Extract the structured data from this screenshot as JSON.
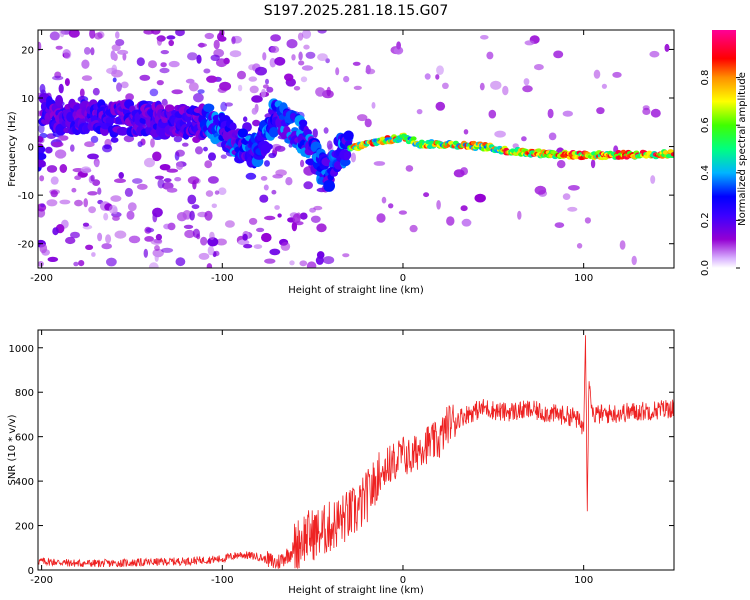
{
  "title": "S197.2025.281.18.15.G07",
  "chart_data": [
    {
      "type": "heatmap",
      "xlabel": "Height of straight line (km)",
      "ylabel": "Frequency (Hz)",
      "xlim": [
        -202,
        150
      ],
      "ylim": [
        -25,
        24
      ],
      "xticks": [
        -200,
        -100,
        0,
        100
      ],
      "yticks": [
        -20,
        -10,
        0,
        10,
        20
      ],
      "ridge": [
        {
          "x": -200,
          "y": 7
        },
        {
          "x": -180,
          "y": 6
        },
        {
          "x": -150,
          "y": 6
        },
        {
          "x": -120,
          "y": 5
        },
        {
          "x": -105,
          "y": 5
        },
        {
          "x": -90,
          "y": 0
        },
        {
          "x": -80,
          "y": -1
        },
        {
          "x": -70,
          "y": 7
        },
        {
          "x": -62,
          "y": 4
        },
        {
          "x": -55,
          "y": 2
        },
        {
          "x": -48,
          "y": -3
        },
        {
          "x": -42,
          "y": -6
        },
        {
          "x": -35,
          "y": -1
        },
        {
          "x": -25,
          "y": 0
        },
        {
          "x": -15,
          "y": 1
        },
        {
          "x": -5,
          "y": 1.5
        },
        {
          "x": 0,
          "y": 2
        },
        {
          "x": 10,
          "y": 0.5
        },
        {
          "x": 25,
          "y": 0.5
        },
        {
          "x": 45,
          "y": 0
        },
        {
          "x": 60,
          "y": -1
        },
        {
          "x": 80,
          "y": -1.5
        },
        {
          "x": 100,
          "y": -1.8
        },
        {
          "x": 125,
          "y": -1.7
        },
        {
          "x": 150,
          "y": -1.5
        }
      ],
      "colorbar": {
        "label": "Normalized spectral amplitude",
        "range": [
          0.0,
          1.0
        ],
        "ticks": [
          {
            "value": 0.0,
            "label": "0.0"
          },
          {
            "value": 0.2,
            "label": "0.2"
          },
          {
            "value": 0.4,
            "label": "0.4"
          },
          {
            "value": 0.6,
            "label": "0.6"
          },
          {
            "value": 0.8,
            "label": "0.8"
          }
        ],
        "colormap": [
          "#ffffff",
          "#9400d3",
          "#4b00ff",
          "#0000ff",
          "#00c8ff",
          "#00ff40",
          "#ffff00",
          "#ff8000",
          "#ff0000",
          "#ff0090"
        ]
      }
    },
    {
      "type": "line",
      "xlabel": "Height of straight line (km)",
      "ylabel": "SNR (10 * v/v)",
      "xlim": [
        -202,
        150
      ],
      "ylim": [
        0,
        1080
      ],
      "xticks": [
        -200,
        -100,
        0,
        100
      ],
      "yticks": [
        0,
        200,
        400,
        600,
        800,
        1000
      ],
      "color": "#ee2222",
      "series": [
        {
          "name": "SNR",
          "x": [
            -202,
            -180,
            -160,
            -140,
            -120,
            -100,
            -90,
            -80,
            -70,
            -62,
            -55,
            -45,
            -35,
            -25,
            -20,
            -10,
            0,
            5,
            10,
            20,
            25,
            35,
            45,
            55,
            70,
            85,
            95,
            100,
            101,
            102,
            103,
            105,
            110,
            125,
            140,
            150
          ],
          "y": [
            40,
            30,
            30,
            35,
            40,
            50,
            70,
            60,
            30,
            80,
            150,
            170,
            220,
            270,
            330,
            460,
            520,
            500,
            560,
            580,
            660,
            700,
            730,
            710,
            720,
            700,
            690,
            640,
            1100,
            300,
            880,
            700,
            700,
            710,
            720,
            730
          ]
        }
      ]
    }
  ]
}
